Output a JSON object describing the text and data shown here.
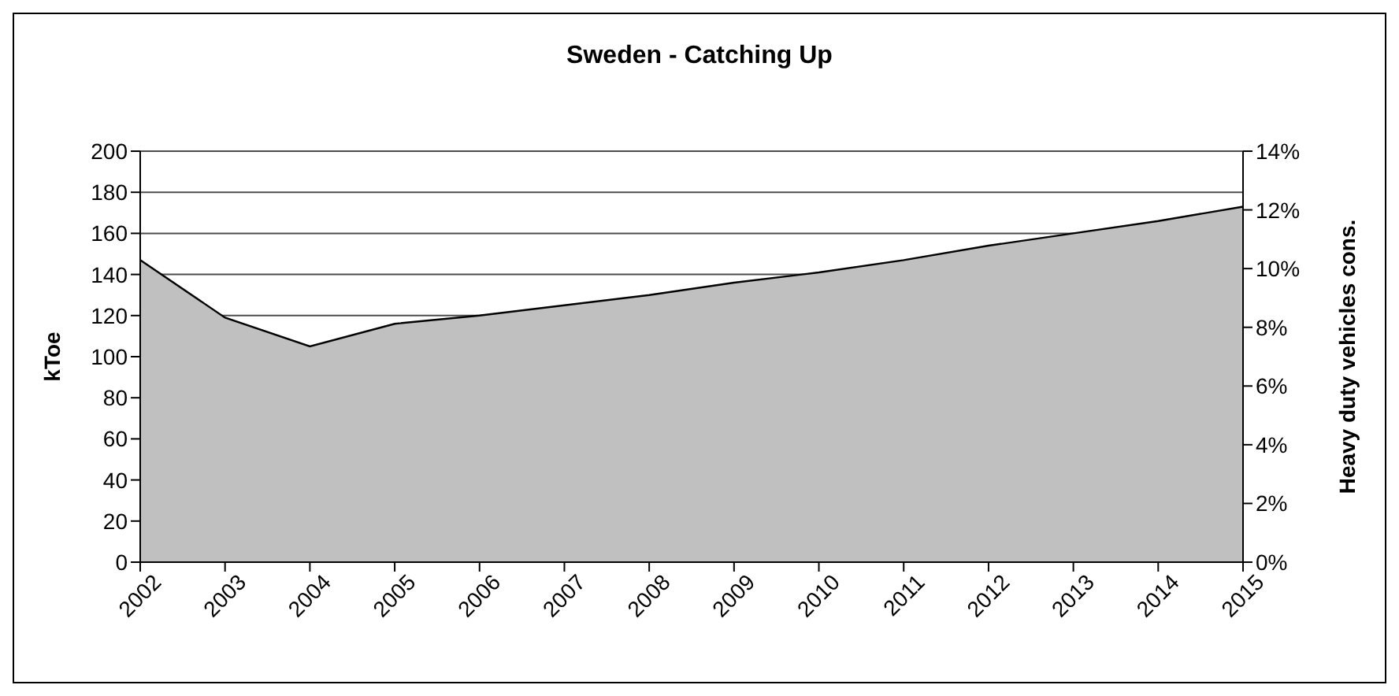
{
  "chart_data": {
    "type": "area",
    "title": "Sweden - Catching Up",
    "ylabel": "kToe",
    "y2label": "Heavy duty vehicles cons.",
    "categories": [
      "2002",
      "2003",
      "2004",
      "2005",
      "2006",
      "2007",
      "2008",
      "2009",
      "2010",
      "2011",
      "2012",
      "2013",
      "2014",
      "2015"
    ],
    "values": [
      147,
      119,
      105,
      116,
      120,
      125,
      130,
      136,
      141,
      147,
      154,
      160,
      166,
      173
    ],
    "color": "#c0c0c0",
    "ylim": [
      0,
      200
    ],
    "yticks": [
      0,
      20,
      40,
      60,
      80,
      100,
      120,
      140,
      160,
      180,
      200
    ],
    "y2lim": [
      0,
      14
    ],
    "y2ticks": [
      {
        "value": 0,
        "label": "0%"
      },
      {
        "value": 2,
        "label": "2%"
      },
      {
        "value": 4,
        "label": "4%"
      },
      {
        "value": 6,
        "label": "6%"
      },
      {
        "value": 8,
        "label": "8%"
      },
      {
        "value": 10,
        "label": "10%"
      },
      {
        "value": 12,
        "label": "12%"
      },
      {
        "value": 14,
        "label": "14%"
      }
    ],
    "grid": "y",
    "legend": false
  }
}
